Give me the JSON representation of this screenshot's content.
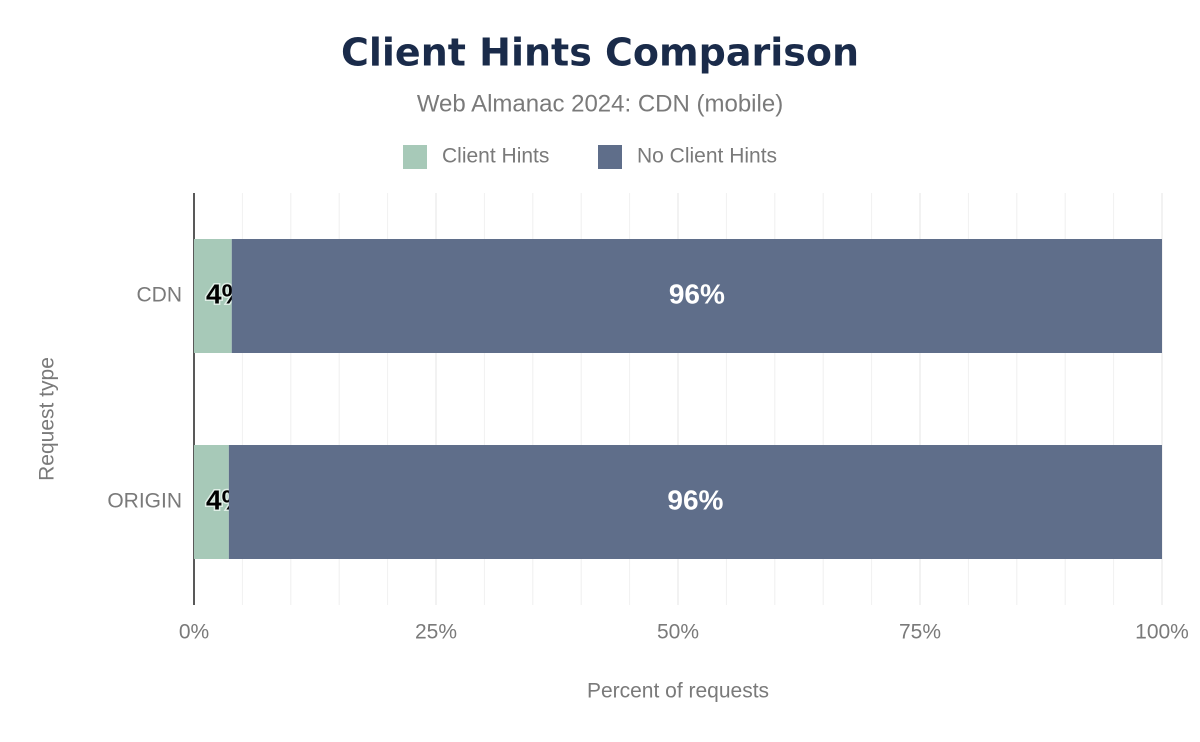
{
  "chart_data": {
    "type": "stacked-bar-horizontal",
    "title": "Client Hints Comparison",
    "subtitle": "Web Almanac 2024: CDN (mobile)",
    "x_label": "Percent of requests",
    "y_label": "Request type",
    "categories": [
      "CDN",
      "ORIGIN"
    ],
    "series": [
      {
        "name": "Client Hints",
        "color": "#a7c9b8",
        "values": [
          3.9,
          3.6
        ],
        "value_labels": [
          "4%",
          "4%"
        ]
      },
      {
        "name": "No Client Hints",
        "color": "#5f6e8a",
        "values": [
          96.1,
          96.4
        ],
        "value_labels": [
          "96%",
          "96%"
        ]
      }
    ],
    "xlim": [
      0,
      100
    ],
    "xticks": [
      {
        "value": 0,
        "label": "0%"
      },
      {
        "value": 25,
        "label": "25%"
      },
      {
        "value": 50,
        "label": "50%"
      },
      {
        "value": 75,
        "label": "75%"
      },
      {
        "value": 100,
        "label": "100%"
      }
    ],
    "x_minor_ticks": [
      5,
      10,
      15,
      20,
      30,
      35,
      40,
      45,
      55,
      60,
      65,
      70,
      80,
      85,
      90,
      95
    ],
    "grid": true,
    "legend": "top"
  }
}
